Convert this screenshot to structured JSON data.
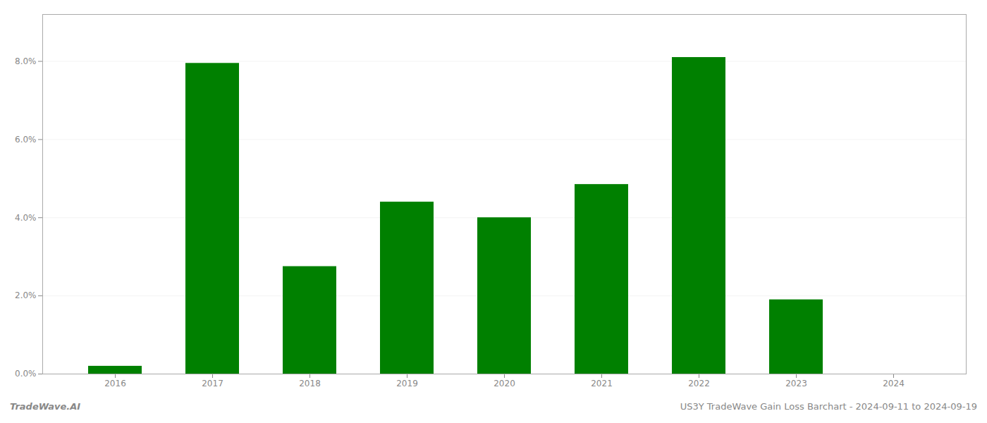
{
  "chart_data": {
    "type": "bar",
    "categories": [
      "2016",
      "2017",
      "2018",
      "2019",
      "2020",
      "2021",
      "2022",
      "2023",
      "2024"
    ],
    "values": [
      0.002,
      0.0795,
      0.0275,
      0.044,
      0.04,
      0.0485,
      0.081,
      0.019,
      0.0
    ],
    "color": "#008000",
    "ylim": [
      0,
      0.092
    ],
    "yticks": [
      {
        "value": 0.0,
        "label": "0.0%"
      },
      {
        "value": 0.02,
        "label": "2.0%"
      },
      {
        "value": 0.04,
        "label": "4.0%"
      },
      {
        "value": 0.06,
        "label": "6.0%"
      },
      {
        "value": 0.08,
        "label": "8.0%"
      }
    ],
    "grid": true,
    "annotations": [
      "TradeWave.AI",
      "US3Y TradeWave Gain Loss Barchart - 2024-09-11 to 2024-09-19"
    ]
  }
}
